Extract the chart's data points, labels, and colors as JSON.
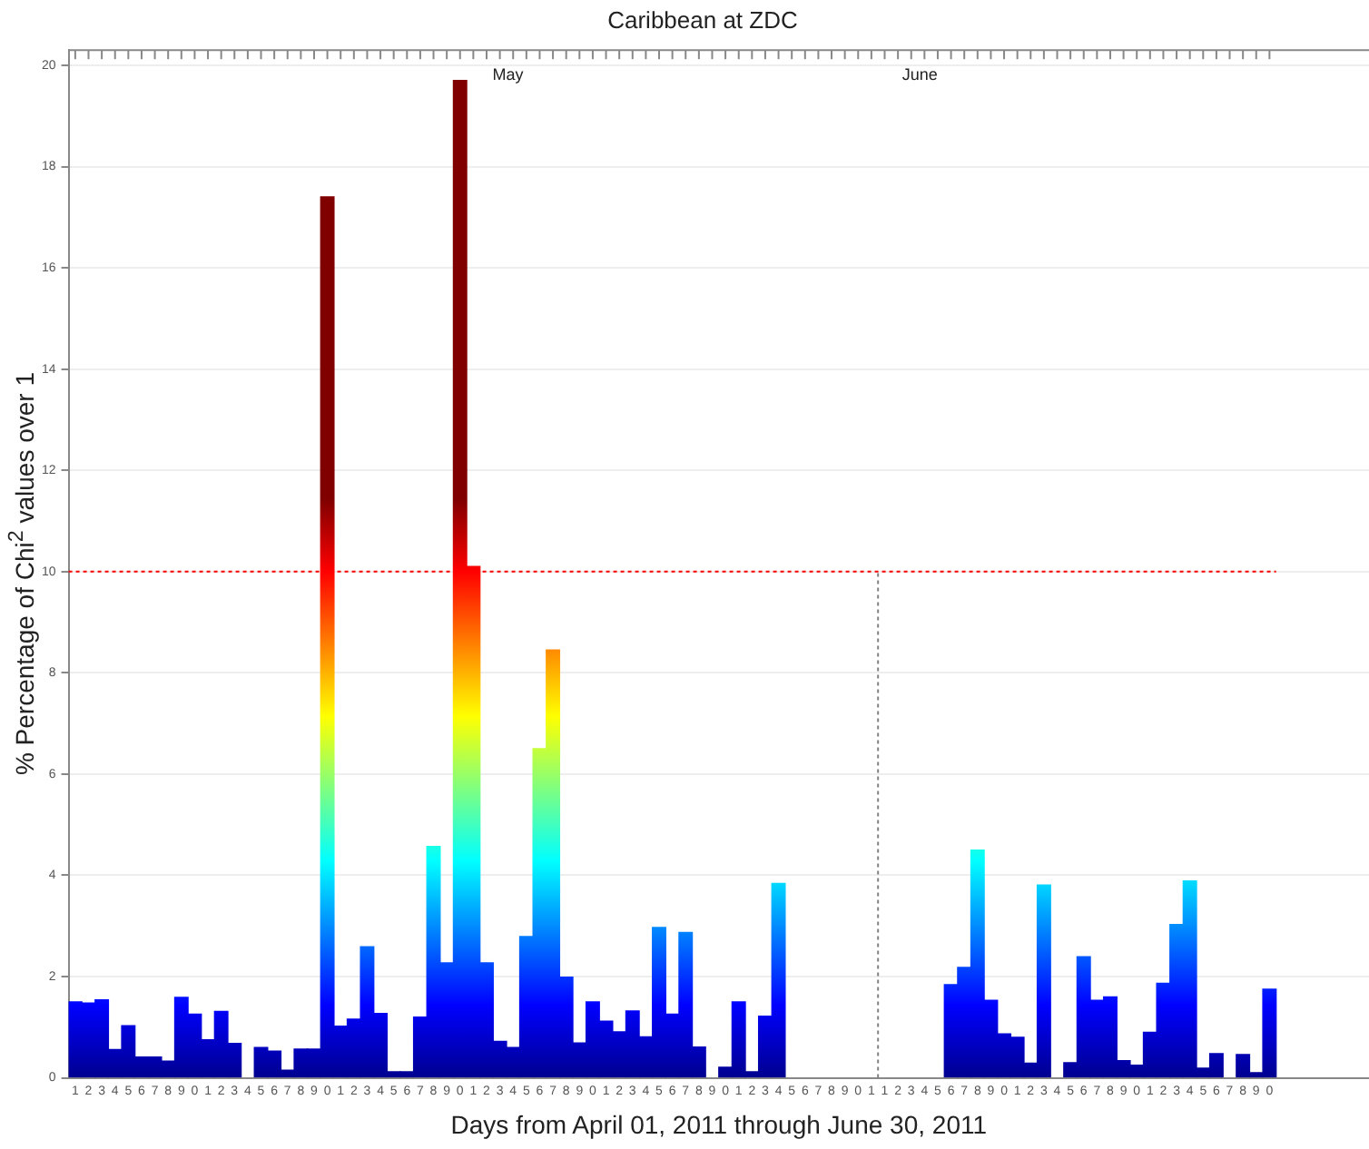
{
  "chart_data": {
    "type": "bar",
    "title": "Caribbean at ZDC",
    "xlabel": "Days from April 01, 2011 through June 30, 2011",
    "ylabel": "% Percentage of Chi$^{2}$ values over 1",
    "categories": [
      "1",
      "2",
      "3",
      "4",
      "5",
      "6",
      "7",
      "8",
      "9",
      "0",
      "1",
      "2",
      "3",
      "4",
      "5",
      "6",
      "7",
      "8",
      "9",
      "0",
      "1",
      "2",
      "3",
      "4",
      "5",
      "6",
      "7",
      "8",
      "9",
      "0",
      "1",
      "2",
      "3",
      "4",
      "5",
      "6",
      "7",
      "8",
      "9",
      "0",
      "1",
      "2",
      "3",
      "4",
      "5",
      "6",
      "7",
      "8",
      "9",
      "0",
      "1",
      "2",
      "3",
      "4",
      "5",
      "6",
      "7",
      "8",
      "9",
      "0",
      "1",
      "1",
      "2",
      "3",
      "4",
      "5",
      "6",
      "7",
      "8",
      "9",
      "0",
      "1",
      "2",
      "3",
      "4",
      "5",
      "6",
      "7",
      "8",
      "9",
      "0",
      "1",
      "2",
      "3",
      "4",
      "5",
      "6",
      "7",
      "8",
      "9",
      "0"
    ],
    "series": [
      {
        "color": "#00008f",
        "values": [
          1.5,
          1.48,
          1.54,
          0.56,
          1.03,
          0.41,
          0.41,
          0.33,
          1.59,
          1.26,
          0.75,
          1.31,
          0.68,
          null,
          0.6,
          0.53,
          0.15,
          0.57,
          0.57,
          17.4,
          1.02,
          1.16,
          2.59,
          1.27,
          0.12,
          0.12,
          1.2,
          4.57,
          2.27,
          19.7,
          10.1,
          2.27,
          0.72,
          0.6,
          2.79,
          6.5,
          8.45,
          1.99,
          0.69,
          1.5,
          1.12,
          0.91,
          1.32,
          0.81,
          2.97,
          1.26,
          2.87,
          0.61,
          null,
          0.21,
          1.5,
          0.12,
          1.22,
          3.84,
          null,
          null,
          null,
          null,
          null,
          null,
          null,
          null,
          null,
          null,
          null,
          null,
          1.84,
          2.18,
          4.5,
          1.53,
          0.87,
          0.8,
          0.29,
          3.81,
          null,
          0.3,
          2.39,
          1.53,
          1.6,
          0.34,
          0.25,
          0.9,
          1.87,
          3.03,
          3.89,
          0.19,
          0.48,
          null,
          0.46,
          0.1,
          1.75
        ]
      }
    ],
    "ylim": [
      0,
      20.3
    ],
    "yticks": [
      0,
      2,
      4,
      6,
      8,
      10,
      12,
      14,
      16,
      18,
      20
    ],
    "grid": "y",
    "ref_lines": [
      {
        "axis": "y",
        "value": 10,
        "color": "#ff0000",
        "line_style": "dotted"
      }
    ],
    "annotations": [
      "May",
      "June"
    ]
  }
}
